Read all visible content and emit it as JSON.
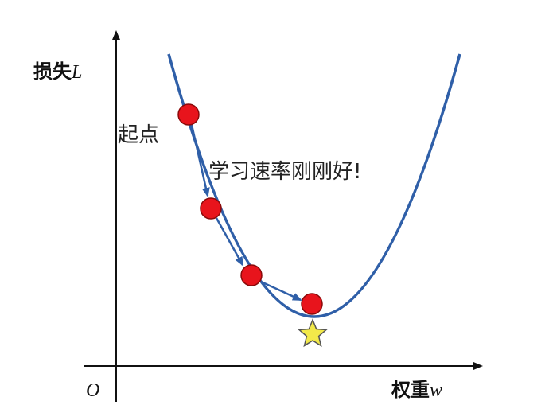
{
  "axes": {
    "y_label": "损失",
    "y_var": "L",
    "x_label": "权重",
    "x_var": "w",
    "origin": "O"
  },
  "annotations": {
    "start": "起点",
    "learning_rate": "学习速率刚刚好!"
  }
}
